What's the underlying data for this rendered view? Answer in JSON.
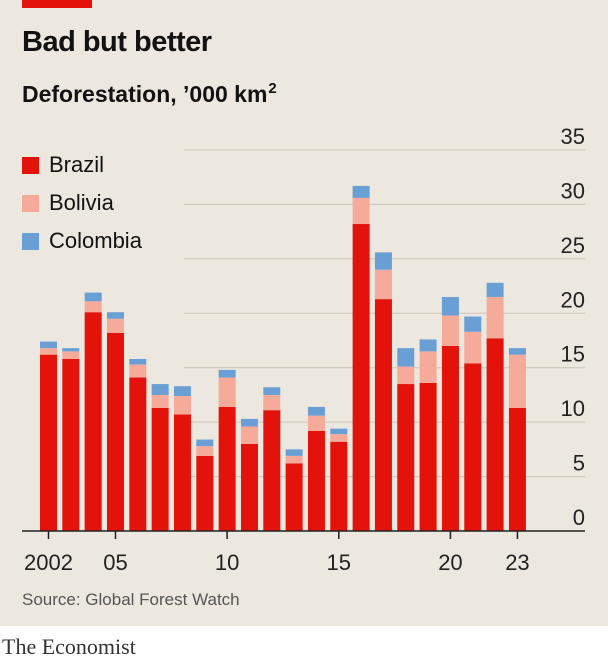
{
  "header": {
    "title": "Bad but better",
    "subtitle": "Deforestation, ’000 km",
    "subtitle_sup": "2"
  },
  "source": "Source: Global Forest Watch",
  "brand": "The Economist",
  "colors": {
    "Brazil": "#e3120b",
    "Bolivia": "#f6ab9a",
    "Colombia": "#6a9fd6"
  },
  "chart_data": {
    "type": "bar",
    "stacked": true,
    "categories": [
      "2002",
      "2003",
      "2004",
      "2005",
      "2006",
      "2007",
      "2008",
      "2009",
      "2010",
      "2011",
      "2012",
      "2013",
      "2014",
      "2015",
      "2016",
      "2017",
      "2018",
      "2019",
      "2020",
      "2021",
      "2022",
      "2023"
    ],
    "x_tick_labels": [
      "2002",
      "",
      "",
      "05",
      "",
      "",
      "",
      "",
      "10",
      "",
      "",
      "",
      "",
      "15",
      "",
      "",
      "",
      "",
      "20",
      "",
      "",
      "23"
    ],
    "series": [
      {
        "name": "Brazil",
        "values": [
          16.2,
          15.8,
          20.1,
          18.2,
          14.1,
          11.3,
          10.7,
          6.9,
          11.4,
          8.0,
          11.1,
          6.2,
          9.2,
          8.2,
          28.2,
          21.3,
          13.5,
          13.6,
          17.0,
          15.4,
          17.7,
          11.3
        ]
      },
      {
        "name": "Bolivia",
        "values": [
          0.6,
          0.7,
          1.0,
          1.3,
          1.2,
          1.2,
          1.7,
          0.9,
          2.7,
          1.6,
          1.4,
          0.7,
          1.4,
          0.7,
          2.4,
          2.7,
          1.6,
          2.9,
          2.8,
          2.9,
          3.8,
          4.9
        ]
      },
      {
        "name": "Colombia",
        "values": [
          0.6,
          0.3,
          0.8,
          0.6,
          0.5,
          1.0,
          0.9,
          0.6,
          0.7,
          0.7,
          0.7,
          0.6,
          0.8,
          0.5,
          1.1,
          1.6,
          1.7,
          1.1,
          1.7,
          1.4,
          1.3,
          0.6
        ]
      }
    ],
    "y_ticks": [
      "0",
      "5",
      "10",
      "15",
      "20",
      "25",
      "30",
      "35"
    ],
    "ylim": [
      0,
      35
    ],
    "grid": true,
    "legend_position": "top-left",
    "y_axis_side": "right"
  }
}
